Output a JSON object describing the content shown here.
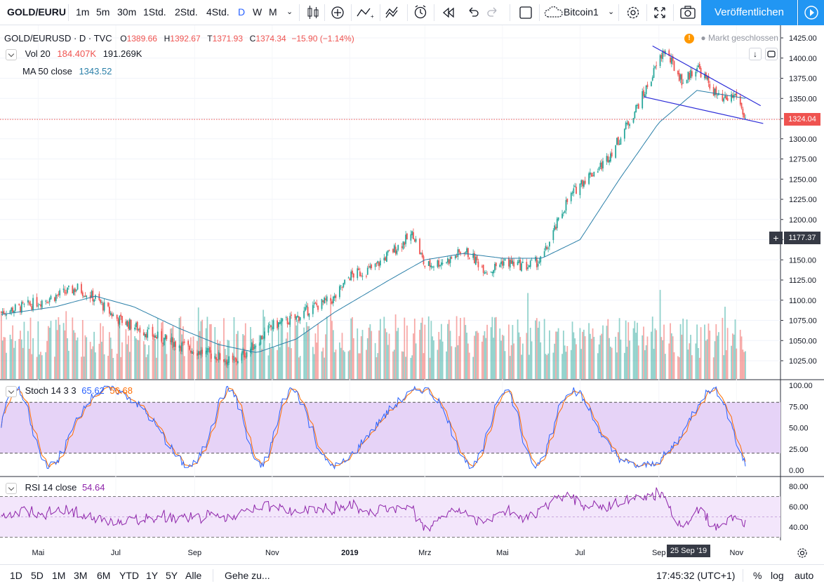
{
  "toolbar": {
    "symbol": "GOLD/EURU",
    "intervals": [
      "1m",
      "5m",
      "30m",
      "1Std.",
      "2Std.",
      "4Std.",
      "D",
      "W",
      "M"
    ],
    "active_interval": "D",
    "layout_name": "Bitcoin1",
    "publish_label": "Veröffentlichen"
  },
  "header": {
    "title": "GOLD/EURUSD · D · TVC",
    "open_label": "O",
    "open": "1389.66",
    "high_label": "H",
    "high": "1392.67",
    "low_label": "T",
    "low": "1371.93",
    "close_label": "C",
    "close": "1374.34",
    "change": "−15.90 (−1.14%)",
    "market_status": "Markt geschlossen"
  },
  "legend": {
    "vol_label": "Vol 20",
    "vol_value": "184.407K",
    "vol_ma": "191.269K",
    "ma_label": "MA 50 close",
    "ma_value": "1343.52",
    "stoch_label": "Stoch 14 3 3",
    "stoch_k": "65.62",
    "stoch_d": "56.68",
    "rsi_label": "RSI 14 close",
    "rsi_value": "54.64"
  },
  "price_badges": {
    "current": "1324.04",
    "crosshair": "1177.37"
  },
  "date_badge": "25 Sep '19",
  "bottombar": {
    "ranges": [
      "1D",
      "5D",
      "1M",
      "3M",
      "6M",
      "YTD",
      "1Y",
      "5Y",
      "Alle"
    ],
    "goto": "Gehe zu...",
    "time": "17:45:32 (UTC+1)",
    "percent": "%",
    "log": "log",
    "auto": "auto"
  },
  "colors": {
    "up": "#26a69a",
    "down": "#ef5350",
    "ma": "#2a7fa8",
    "wedge": "#2c2cd8",
    "stoch_k": "#2962ff",
    "stoch_d": "#ff6d00",
    "rsi": "#8e24aa",
    "band": "#e6d3f7"
  },
  "chart_data": [
    {
      "type": "candlestick",
      "title": "GOLD/EURUSD",
      "yticks": [
        1025,
        1050,
        1075,
        1100,
        1125,
        1150,
        1175,
        1200,
        1225,
        1250,
        1275,
        1300,
        1325,
        1350,
        1375,
        1400,
        1425
      ],
      "ylim": [
        1005,
        1430
      ],
      "xtick_labels": [
        "Mai",
        "Jul",
        "Sep",
        "Nov",
        "2019",
        "Mrz",
        "Mai",
        "Jul",
        "Sep",
        "Nov"
      ],
      "close_path": [
        [
          "2018-04-01",
          1085
        ],
        [
          "2018-04-20",
          1092
        ],
        [
          "2018-05-01",
          1098
        ],
        [
          "2018-05-20",
          1108
        ],
        [
          "2018-06-01",
          1115
        ],
        [
          "2018-06-15",
          1102
        ],
        [
          "2018-07-01",
          1078
        ],
        [
          "2018-07-15",
          1068
        ],
        [
          "2018-08-01",
          1055
        ],
        [
          "2018-08-20",
          1045
        ],
        [
          "2018-09-01",
          1038
        ],
        [
          "2018-09-20",
          1030
        ],
        [
          "2018-10-01",
          1022
        ],
        [
          "2018-10-15",
          1040
        ],
        [
          "2018-11-01",
          1068
        ],
        [
          "2018-11-20",
          1078
        ],
        [
          "2018-12-01",
          1090
        ],
        [
          "2018-12-20",
          1102
        ],
        [
          "2019-01-01",
          1130
        ],
        [
          "2019-01-20",
          1140
        ],
        [
          "2019-02-01",
          1158
        ],
        [
          "2019-02-20",
          1182
        ],
        [
          "2019-03-01",
          1142
        ],
        [
          "2019-03-20",
          1150
        ],
        [
          "2019-04-01",
          1162
        ],
        [
          "2019-04-20",
          1135
        ],
        [
          "2019-05-01",
          1148
        ],
        [
          "2019-05-20",
          1142
        ],
        [
          "2019-06-01",
          1150
        ],
        [
          "2019-06-20",
          1220
        ],
        [
          "2019-07-01",
          1245
        ],
        [
          "2019-07-20",
          1270
        ],
        [
          "2019-08-01",
          1300
        ],
        [
          "2019-08-20",
          1355
        ],
        [
          "2019-09-05",
          1410
        ],
        [
          "2019-09-20",
          1370
        ],
        [
          "2019-10-01",
          1390
        ],
        [
          "2019-10-20",
          1345
        ],
        [
          "2019-11-01",
          1355
        ],
        [
          "2019-11-08",
          1324
        ]
      ],
      "ma50_path": [
        [
          "2018-04-01",
          1082
        ],
        [
          "2018-05-15",
          1092
        ],
        [
          "2018-06-15",
          1105
        ],
        [
          "2018-07-15",
          1092
        ],
        [
          "2018-08-20",
          1065
        ],
        [
          "2018-09-20",
          1045
        ],
        [
          "2018-10-20",
          1035
        ],
        [
          "2018-11-20",
          1052
        ],
        [
          "2018-12-20",
          1085
        ],
        [
          "2019-02-01",
          1125
        ],
        [
          "2019-03-01",
          1150
        ],
        [
          "2019-04-01",
          1158
        ],
        [
          "2019-05-01",
          1152
        ],
        [
          "2019-06-01",
          1152
        ],
        [
          "2019-07-01",
          1175
        ],
        [
          "2019-08-01",
          1250
        ],
        [
          "2019-09-01",
          1320
        ],
        [
          "2019-10-01",
          1360
        ],
        [
          "2019-11-08",
          1350
        ]
      ],
      "wedge_lines": [
        [
          [
            "2019-08-27",
            1415
          ],
          [
            "2019-11-20",
            1341
          ]
        ],
        [
          [
            "2019-08-20",
            1352
          ],
          [
            "2019-11-22",
            1319
          ]
        ]
      ]
    },
    {
      "type": "bar",
      "title": "Vol 20",
      "values_note_free": true
    },
    {
      "type": "line",
      "title": "Stoch 14 3 3",
      "yticks": [
        0,
        25,
        50,
        75,
        100
      ],
      "ylim": [
        -8,
        101
      ],
      "band": [
        20,
        80
      ]
    },
    {
      "type": "line",
      "title": "RSI 14 close",
      "yticks": [
        40,
        60,
        80
      ],
      "ylim": [
        27,
        87
      ],
      "band": [
        30,
        70
      ]
    }
  ]
}
